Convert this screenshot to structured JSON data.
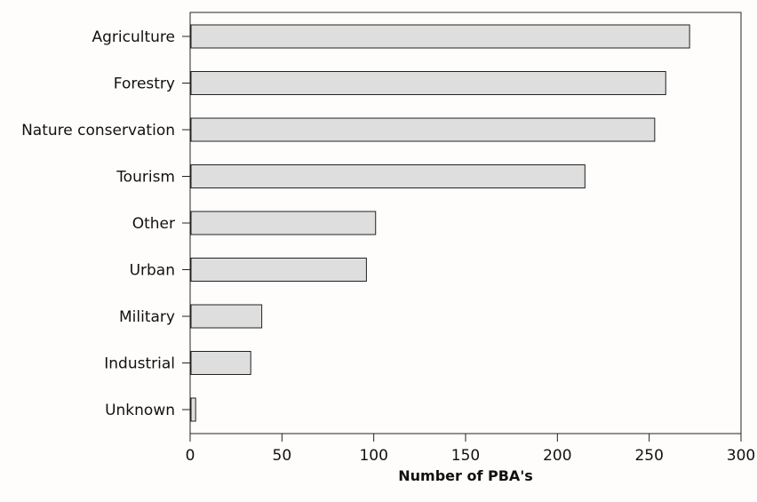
{
  "chart_data": {
    "type": "bar",
    "orientation": "horizontal",
    "categories": [
      "Agriculture",
      "Forestry",
      "Nature conservation",
      "Tourism",
      "Other",
      "Urban",
      "Military",
      "Industrial",
      "Unknown"
    ],
    "values": [
      272,
      259,
      253,
      215,
      101,
      96,
      39,
      33,
      3
    ],
    "xlabel": "Number of PBA's",
    "ylabel": "",
    "xlim": [
      0,
      300
    ],
    "xticks": [
      0,
      50,
      100,
      150,
      200,
      250,
      300
    ],
    "grid": false,
    "colors": {
      "bar_fill": "#dedede",
      "bar_stroke": "#222222",
      "axis": "#222222",
      "background": "#fffdfb"
    }
  }
}
